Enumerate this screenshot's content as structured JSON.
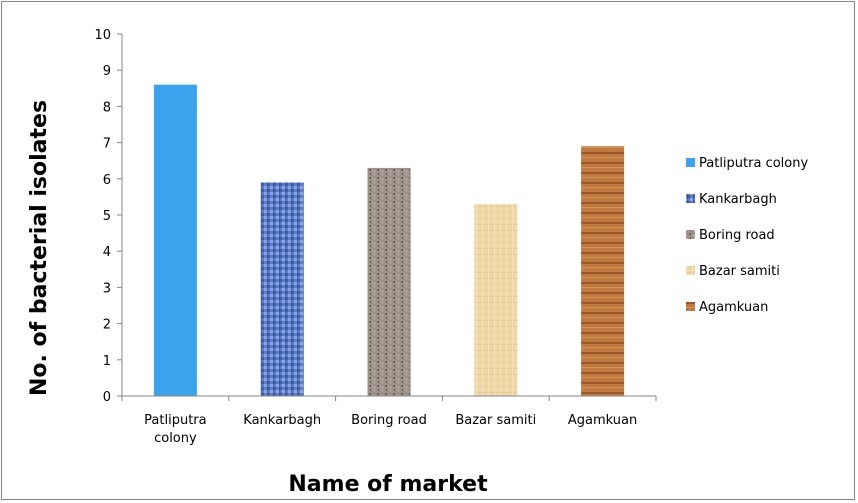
{
  "chart_data": {
    "type": "bar",
    "categories": [
      "Patliputra colony",
      "Kankarbagh",
      "Boring road",
      "Bazar samiti",
      "Agamkuan"
    ],
    "category_lines": [
      [
        "Patliputra",
        "colony"
      ],
      [
        "Kankarbagh"
      ],
      [
        "Boring road"
      ],
      [
        "Bazar samiti"
      ],
      [
        "Agamkuan"
      ]
    ],
    "values": [
      8.6,
      5.9,
      6.3,
      5.3,
      6.9
    ],
    "xlabel": "Name of market",
    "ylabel": "No. of bacterial isolates",
    "ylim": [
      0,
      10
    ],
    "yticks": [
      0,
      1,
      2,
      3,
      4,
      5,
      6,
      7,
      8,
      9,
      10
    ],
    "grid": false,
    "legend_position": "right",
    "legend": [
      "Patliputra colony",
      "Kankarbagh",
      "Boring road",
      "Bazar samiti",
      "Agamkuan"
    ],
    "colors": [
      "#3aa3ee",
      "#5a7cc6",
      "#9a8c84",
      "#ead8a4",
      "#b8703a"
    ]
  }
}
